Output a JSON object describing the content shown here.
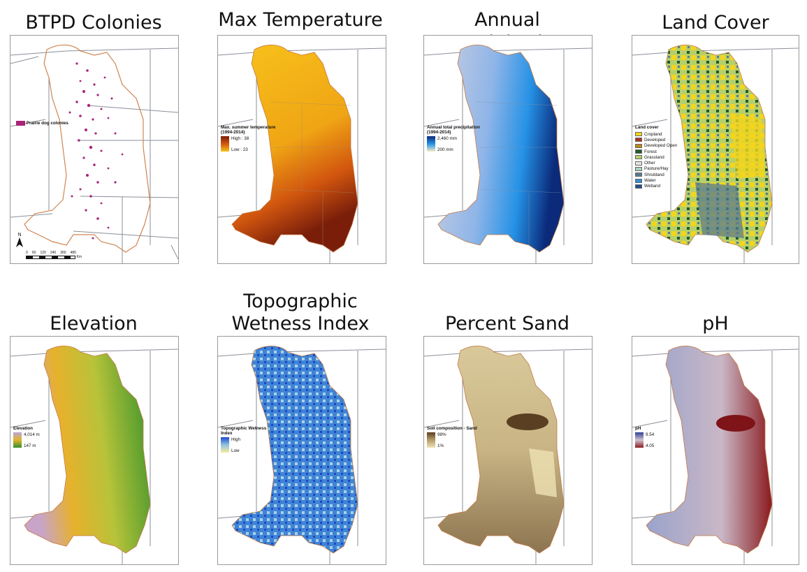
{
  "panels": [
    {
      "title": "BTPD Colonies",
      "legend": {
        "item_label": "Prairie dog colonies",
        "color": "#a8237a"
      },
      "north_label": "N",
      "scale_labels": [
        "0",
        "60",
        "120",
        "240",
        "360",
        "480"
      ],
      "scale_unit": "Km"
    },
    {
      "title": "Max Temperature",
      "legend": {
        "title": "Max. summer temperature (1994-2014)",
        "high": "High : 38",
        "low": "Low : 23"
      }
    },
    {
      "title": "Annual Precipitation",
      "legend": {
        "title": "Annual total precipitation (1994-2014)",
        "high": "2,460 mm",
        "low": "200 mm"
      }
    },
    {
      "title": "Land Cover",
      "legend": {
        "title": "Land cover",
        "classes": [
          {
            "label": "Cropland",
            "color": "#f4d51c"
          },
          {
            "label": "Developed",
            "color": "#a8341f"
          },
          {
            "label": "Developed Open",
            "color": "#b88a1a"
          },
          {
            "label": "Forest",
            "color": "#1f5b2c"
          },
          {
            "label": "Grassland",
            "color": "#b6cf6b"
          },
          {
            "label": "Other",
            "color": "#e8e8e0"
          },
          {
            "label": "Pasture/Hay",
            "color": "#a7d3c2"
          },
          {
            "label": "Shrubland",
            "color": "#5a7b8e"
          },
          {
            "label": "Water",
            "color": "#2f8fd8"
          },
          {
            "label": "Wetland",
            "color": "#214f8f"
          }
        ]
      }
    },
    {
      "title": "Elevation",
      "legend": {
        "title": "Elevation",
        "high": "4,014 m",
        "low": "147 m"
      }
    },
    {
      "title_line1": "Topographic",
      "title_line2": "Wetness Index",
      "legend": {
        "title": "Topographic Wetness Index",
        "high": "High",
        "low": "Low"
      }
    },
    {
      "title": "Percent Sand",
      "legend": {
        "title": "Soil composition - Sand",
        "high": "98%",
        "low": "1%"
      }
    },
    {
      "title": "pH",
      "legend": {
        "title": "pH",
        "high": "9.54",
        "low": "4.05"
      }
    }
  ],
  "colors": {
    "temp_ramp": [
      "#7a1e0a",
      "#d1560f",
      "#f7c21b"
    ],
    "precip_ramp": [
      "#0b2a7a",
      "#2592e6",
      "#f3efc6"
    ],
    "elev_ramp": [
      "#b9a6d6",
      "#e3b42e",
      "#2f8f2a"
    ],
    "twi_ramp": [
      "#1f4bd1",
      "#8fc4e0",
      "#f6eaa0"
    ],
    "sand_ramp": [
      "#5a3f22",
      "#b49d6b",
      "#efe2b3"
    ],
    "ph_ramp": [
      "#2f3f96",
      "#cfc2cf",
      "#8a1a1e"
    ]
  }
}
